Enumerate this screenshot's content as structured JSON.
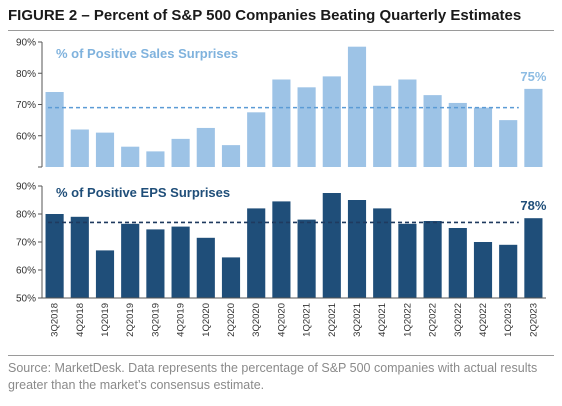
{
  "title": "FIGURE 2 – Percent of S&P 500 Companies Beating Quarterly Estimates",
  "source": "Source: MarketDesk. Data represents the percentage of S&P 500 companies with actual results greater than the market’s consensus estimate.",
  "colors": {
    "sales_bar": "#9dc3e6",
    "eps_bar": "#1f4e79",
    "sales_avg_line": "#5b9bd5",
    "eps_avg_line": "#1f3a5f",
    "axis": "#555555"
  },
  "chart_data": [
    {
      "type": "bar",
      "title": "% of Positive Sales Surprises",
      "categories": [
        "3Q2018",
        "4Q2018",
        "1Q2019",
        "2Q2019",
        "3Q2019",
        "4Q2019",
        "1Q2020",
        "2Q2020",
        "3Q2020",
        "4Q2020",
        "1Q2021",
        "2Q2021",
        "3Q2021",
        "4Q2021",
        "1Q2022",
        "2Q2022",
        "3Q2022",
        "4Q2022",
        "1Q2023",
        "2Q2023"
      ],
      "values": [
        74,
        62,
        61,
        56.5,
        55,
        59,
        62.5,
        57,
        67.5,
        78,
        75.5,
        79,
        88.5,
        76,
        78,
        73,
        70.5,
        69,
        65,
        75
      ],
      "ylim": [
        50,
        90
      ],
      "yticks": [
        "50%",
        "60%",
        "70%",
        "80%",
        "90%"
      ],
      "y_axis_labels_shown": [
        "60%",
        "70%",
        "80%",
        "90%"
      ],
      "average_line": 69,
      "callout": "75%",
      "grid": false
    },
    {
      "type": "bar",
      "title": "% of Positive EPS Surprises",
      "categories": [
        "3Q2018",
        "4Q2018",
        "1Q2019",
        "2Q2019",
        "3Q2019",
        "4Q2019",
        "1Q2020",
        "2Q2020",
        "3Q2020",
        "4Q2020",
        "1Q2021",
        "2Q2021",
        "3Q2021",
        "4Q2021",
        "1Q2022",
        "2Q2022",
        "3Q2022",
        "4Q2022",
        "1Q2023",
        "2Q2023"
      ],
      "values": [
        80,
        79,
        67,
        76.5,
        74.5,
        75.5,
        71.5,
        64.5,
        82,
        84.5,
        78,
        87.5,
        85,
        82,
        76.5,
        77.5,
        75,
        70,
        69,
        78.5
      ],
      "ylim": [
        50,
        90
      ],
      "yticks": [
        "50%",
        "60%",
        "70%",
        "80%",
        "90%"
      ],
      "average_line": 77,
      "callout": "78%",
      "grid": false
    }
  ]
}
